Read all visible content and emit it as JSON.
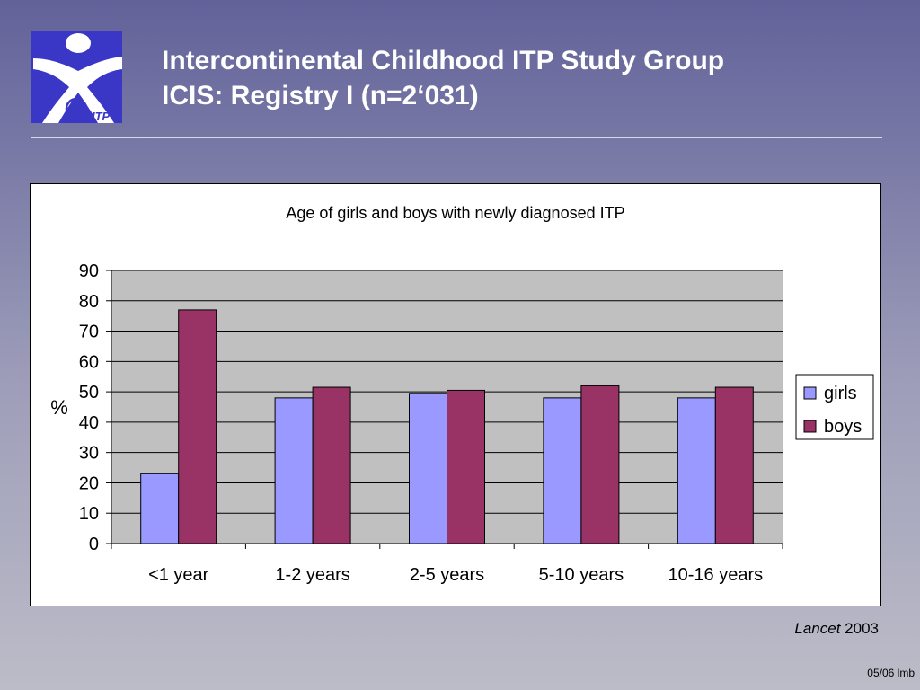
{
  "header": {
    "title_line1": "Intercontinental Childhood ITP Study Group",
    "title_line2": "ICIS: Registry I (n=2‘031)",
    "logo_text": "ITP"
  },
  "chart_data": {
    "type": "bar",
    "title": "Age of girls and boys with newly diagnosed ITP",
    "xlabel": "",
    "ylabel": "%",
    "categories": [
      "<1 year",
      "1-2 years",
      "2-5 years",
      "5-10 years",
      "10-16 years"
    ],
    "series": [
      {
        "name": "girls",
        "values": [
          23,
          48,
          49.5,
          48,
          48
        ],
        "color": "#9999ff"
      },
      {
        "name": "boys",
        "values": [
          77,
          51.5,
          50.5,
          52,
          51.5
        ],
        "color": "#993366"
      }
    ],
    "ylim": [
      0,
      90
    ],
    "yticks": [
      0,
      10,
      20,
      30,
      40,
      50,
      60,
      70,
      80,
      90
    ],
    "grid": true,
    "plot_background": "#c0c0c0",
    "legend_position": "right"
  },
  "citation": {
    "journal": "Lancet",
    "year": "2003"
  },
  "footer": {
    "code": "05/06 lmb"
  }
}
